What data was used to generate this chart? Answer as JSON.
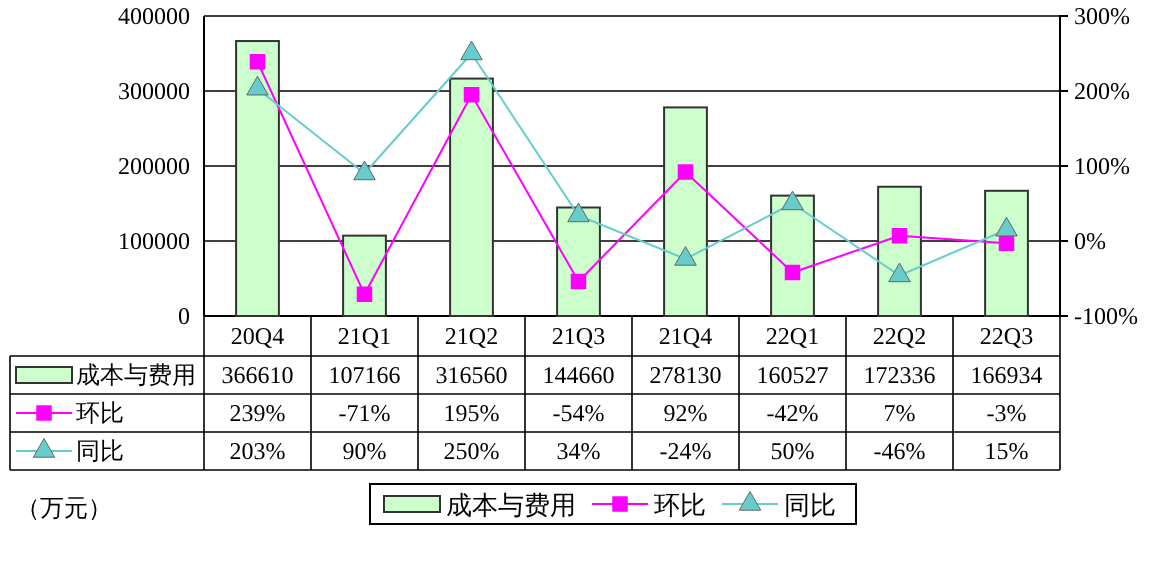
{
  "chart_data": {
    "type": "bar",
    "categories": [
      "20Q4",
      "21Q1",
      "21Q2",
      "21Q3",
      "21Q4",
      "22Q1",
      "22Q2",
      "22Q3"
    ],
    "series": [
      {
        "name": "成本与费用",
        "color": "#ccffcc",
        "values": [
          366610,
          107166,
          316560,
          144660,
          278130,
          160527,
          172336,
          166934
        ],
        "value_labels": [
          "366610",
          "107166",
          "316560",
          "144660",
          "278130",
          "160527",
          "172336",
          "166934"
        ]
      },
      {
        "name": "环比",
        "type": "line",
        "axis": "y2",
        "color": "#ff00ff",
        "marker": "square",
        "values": [
          239,
          -71,
          195,
          -54,
          92,
          -42,
          7,
          -3
        ],
        "value_labels": [
          "239%",
          "-71%",
          "195%",
          "-54%",
          "92%",
          "-42%",
          "7%",
          "-3%"
        ]
      },
      {
        "name": "同比",
        "type": "line",
        "axis": "y2",
        "color": "#66cccc",
        "marker": "triangle",
        "values": [
          203,
          90,
          250,
          34,
          -24,
          50,
          -46,
          15
        ],
        "value_labels": [
          "203%",
          "90%",
          "250%",
          "34%",
          "-24%",
          "50%",
          "-46%",
          "15%"
        ]
      }
    ],
    "ylim": [
      0,
      400000
    ],
    "yticks": [
      0,
      100000,
      200000,
      300000,
      400000
    ],
    "y2lim": [
      -100,
      300
    ],
    "y2ticks": [
      {
        "value": -100,
        "label": "-100%"
      },
      {
        "value": 0,
        "label": "0%"
      },
      {
        "value": 100,
        "label": "100%"
      },
      {
        "value": 200,
        "label": "200%"
      },
      {
        "value": 300,
        "label": "300%"
      }
    ],
    "grid": "y",
    "legend": "bottom",
    "annotations": [
      "（万元）"
    ]
  }
}
